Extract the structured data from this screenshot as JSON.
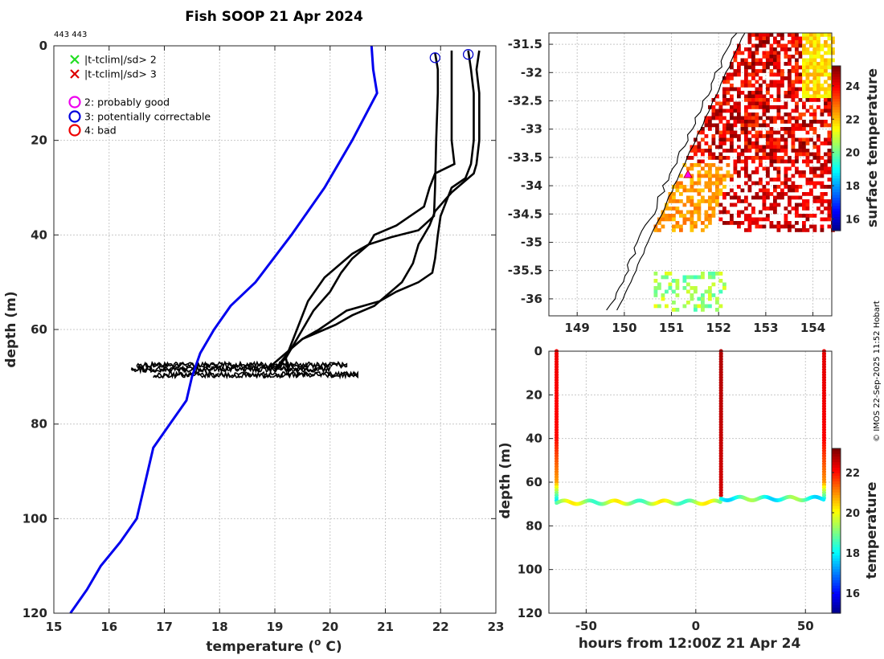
{
  "chart_data": [
    {
      "id": "profile",
      "type": "line",
      "title": "Fish SOOP 21 Apr 2024",
      "subtitle": "443 443",
      "xlabel_main": "temperature (",
      "xlabel_sup": "o",
      "xlabel_end": " C)",
      "ylabel": "depth (m)",
      "xlim": [
        15,
        23
      ],
      "ylim": [
        0,
        120
      ],
      "xticks": [
        15,
        16,
        17,
        18,
        19,
        20,
        21,
        22,
        23
      ],
      "yticks": [
        0,
        20,
        40,
        60,
        80,
        100,
        120
      ],
      "legend": [
        {
          "symbol": "x",
          "color": "#22dd22",
          "label": "|t-tclim|/sd> 2"
        },
        {
          "symbol": "x",
          "color": "#dd0000",
          "label": "|t-tclim|/sd> 3"
        },
        {
          "symbol": "o",
          "color": "#ee00ee",
          "label": "2: probably good"
        },
        {
          "symbol": "o",
          "color": "#0000dd",
          "label": "3: potentially correctable"
        },
        {
          "symbol": "o",
          "color": "#ee0000",
          "label": "4: bad"
        }
      ],
      "climatology": {
        "name": "climatology",
        "color": "#0000ee",
        "points": [
          [
            20.75,
            0
          ],
          [
            20.78,
            5
          ],
          [
            20.85,
            10
          ],
          [
            20.4,
            20
          ],
          [
            19.9,
            30
          ],
          [
            19.3,
            40
          ],
          [
            18.65,
            50
          ],
          [
            18.2,
            55
          ],
          [
            17.9,
            60
          ],
          [
            17.65,
            65
          ],
          [
            17.5,
            70
          ],
          [
            17.4,
            75
          ],
          [
            17.1,
            80
          ],
          [
            16.8,
            85
          ],
          [
            16.7,
            90
          ],
          [
            16.6,
            95
          ],
          [
            16.5,
            100
          ],
          [
            16.2,
            105
          ],
          [
            15.85,
            110
          ],
          [
            15.6,
            115
          ],
          [
            15.3,
            120
          ]
        ]
      },
      "profiles": [
        {
          "name": "profile-1",
          "points": [
            [
              21.9,
              1.5
            ],
            [
              21.95,
              5
            ],
            [
              21.95,
              10
            ],
            [
              21.92,
              20
            ],
            [
              21.9,
              30
            ],
            [
              21.88,
              36
            ],
            [
              21.6,
              39
            ],
            [
              21.1,
              40.5
            ],
            [
              20.7,
              42
            ],
            [
              20.4,
              45
            ],
            [
              20.2,
              48
            ],
            [
              20.0,
              52
            ],
            [
              19.7,
              56
            ],
            [
              19.5,
              60
            ],
            [
              19.3,
              64
            ],
            [
              19.1,
              67
            ],
            [
              19.0,
              69
            ]
          ]
        },
        {
          "name": "profile-2",
          "points": [
            [
              22.2,
              1
            ],
            [
              22.2,
              5
            ],
            [
              22.2,
              10
            ],
            [
              22.2,
              20
            ],
            [
              22.25,
              25
            ],
            [
              21.9,
              27
            ],
            [
              21.8,
              30
            ],
            [
              21.7,
              34
            ],
            [
              21.45,
              36
            ],
            [
              21.2,
              38
            ],
            [
              20.8,
              40
            ],
            [
              20.7,
              42
            ],
            [
              20.4,
              44
            ],
            [
              20.2,
              46
            ],
            [
              19.9,
              49
            ],
            [
              19.6,
              54
            ],
            [
              19.4,
              60
            ],
            [
              19.3,
              63
            ],
            [
              19.2,
              66
            ],
            [
              19.25,
              69
            ]
          ]
        },
        {
          "name": "profile-3",
          "points": [
            [
              22.5,
              1
            ],
            [
              22.55,
              5
            ],
            [
              22.6,
              10
            ],
            [
              22.6,
              20
            ],
            [
              22.55,
              25
            ],
            [
              22.45,
              28
            ],
            [
              22.2,
              30
            ],
            [
              22.1,
              33
            ],
            [
              22.0,
              36
            ],
            [
              21.95,
              40
            ],
            [
              21.9,
              45
            ],
            [
              21.85,
              48
            ],
            [
              21.6,
              50
            ],
            [
              21.2,
              52
            ],
            [
              20.9,
              54
            ],
            [
              20.6,
              55
            ],
            [
              20.3,
              56
            ],
            [
              20.05,
              58
            ],
            [
              19.8,
              60
            ],
            [
              19.5,
              62
            ],
            [
              19.3,
              64
            ],
            [
              19.2,
              66
            ],
            [
              19.0,
              68.5
            ]
          ]
        },
        {
          "name": "profile-4",
          "points": [
            [
              22.7,
              1
            ],
            [
              22.65,
              5
            ],
            [
              22.7,
              10
            ],
            [
              22.7,
              20
            ],
            [
              22.65,
              25
            ],
            [
              22.6,
              27
            ],
            [
              22.4,
              29
            ],
            [
              22.2,
              31
            ],
            [
              22.05,
              33
            ],
            [
              21.9,
              35
            ],
            [
              21.8,
              38
            ],
            [
              21.6,
              42
            ],
            [
              21.5,
              46
            ],
            [
              21.3,
              50
            ],
            [
              21.1,
              52
            ],
            [
              20.8,
              55
            ],
            [
              20.4,
              57
            ],
            [
              20.1,
              59
            ],
            [
              19.9,
              60
            ],
            [
              19.5,
              62
            ],
            [
              19.3,
              64
            ],
            [
              19.1,
              66
            ],
            [
              18.9,
              68
            ]
          ]
        }
      ],
      "flag_markers": [
        {
          "t": 21.9,
          "d": 1.5,
          "color": "#0000cc"
        },
        {
          "t": 22.5,
          "d": 0.8,
          "color": "#0000cc"
        }
      ],
      "noise_bands": [
        {
          "t_min": 16.5,
          "t_max": 20.3,
          "d_center": 67.5
        },
        {
          "t_min": 16.4,
          "t_max": 20.0,
          "d_center": 68.4
        },
        {
          "t_min": 16.8,
          "t_max": 20.5,
          "d_center": 69.6
        }
      ]
    },
    {
      "id": "map",
      "type": "heatmap",
      "xticks": [
        149,
        150,
        151,
        152,
        153,
        154
      ],
      "yticks": [
        -31.5,
        -32,
        -32.5,
        -33,
        -33.5,
        -34,
        -34.5,
        -35,
        -35.5,
        -36
      ],
      "xlim": [
        148.4,
        154.4
      ],
      "ylim": [
        -36.3,
        -31.3
      ],
      "colorbar_label": "surface temperature",
      "colorbar_ticks": [
        16,
        18,
        20,
        22,
        24
      ],
      "colorbar_range": [
        15.3,
        25.2
      ],
      "ship_position": {
        "lon": 151.35,
        "lat": -33.8
      }
    },
    {
      "id": "timeseries",
      "type": "scatter",
      "xlabel": "hours from 12:00Z 21 Apr 24",
      "ylabel": "depth (m)",
      "xlim": [
        -67,
        62
      ],
      "ylim": [
        0,
        120
      ],
      "xticks": [
        -50,
        0,
        50
      ],
      "yticks": [
        0,
        20,
        40,
        60,
        80,
        100,
        120
      ],
      "colorbar_label": "temperature",
      "colorbar_ticks": [
        16,
        18,
        20,
        22
      ],
      "colorbar_range": [
        15,
        23.2
      ],
      "casts": [
        {
          "hour": -63.5,
          "surface_temp": 22.3,
          "bottom_depth": 69
        },
        {
          "hour": 11.5,
          "surface_temp": 22.8,
          "bottom_depth": 67
        },
        {
          "hour": 58.5,
          "surface_temp": 22.4,
          "bottom_depth": 67.5
        }
      ]
    }
  ],
  "watermark": "© IMOS 22-Sep-2025 11:52 Hobart"
}
